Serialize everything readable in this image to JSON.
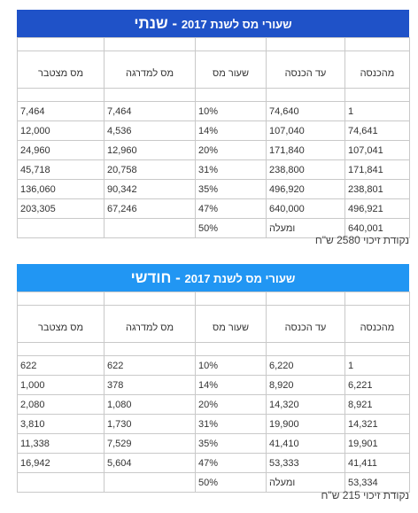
{
  "annual": {
    "title_prefix": "שעורי מס לשנת 2017",
    "title_sep": " - ",
    "title_period": "שנתי",
    "headers": [
      "מהכנסה",
      "עד הכנסה",
      "שעור מס",
      "מס למדרגה",
      "מס מצטבר"
    ],
    "rows": [
      [
        "1",
        "74,640",
        "10%",
        "7,464",
        "7,464"
      ],
      [
        "74,641",
        "107,040",
        "14%",
        "4,536",
        "12,000"
      ],
      [
        "107,041",
        "171,840",
        "20%",
        "12,960",
        "24,960"
      ],
      [
        "171,841",
        "238,800",
        "31%",
        "20,758",
        "45,718"
      ],
      [
        "238,801",
        "496,920",
        "35%",
        "90,342",
        "136,060"
      ],
      [
        "496,921",
        "640,000",
        "47%",
        "67,246",
        "203,305"
      ],
      [
        "640,001",
        "ומעלה",
        "50%",
        "",
        ""
      ]
    ],
    "credit_note": "נקודת זיכוי 2580 ש\"ח"
  },
  "monthly": {
    "title_prefix": "שעורי מס לשנת 2017",
    "title_sep": " - ",
    "title_period": "חודשי",
    "headers": [
      "מהכנסה",
      "עד הכנסה",
      "שעור מס",
      "מס למדרגה",
      "מס מצטבר"
    ],
    "rows": [
      [
        "1",
        "6,220",
        "10%",
        "622",
        "622"
      ],
      [
        "6,221",
        "8,920",
        "14%",
        "378",
        "1,000"
      ],
      [
        "8,921",
        "14,320",
        "20%",
        "1,080",
        "2,080"
      ],
      [
        "14,321",
        "19,900",
        "31%",
        "1,730",
        "3,810"
      ],
      [
        "19,901",
        "41,410",
        "35%",
        "7,529",
        "11,338"
      ],
      [
        "41,411",
        "53,333",
        "47%",
        "5,604",
        "16,942"
      ],
      [
        "53,334",
        "ומעלה",
        "50%",
        "",
        ""
      ]
    ],
    "credit_note": "נקודת זיכוי 215 ש\"ח"
  }
}
